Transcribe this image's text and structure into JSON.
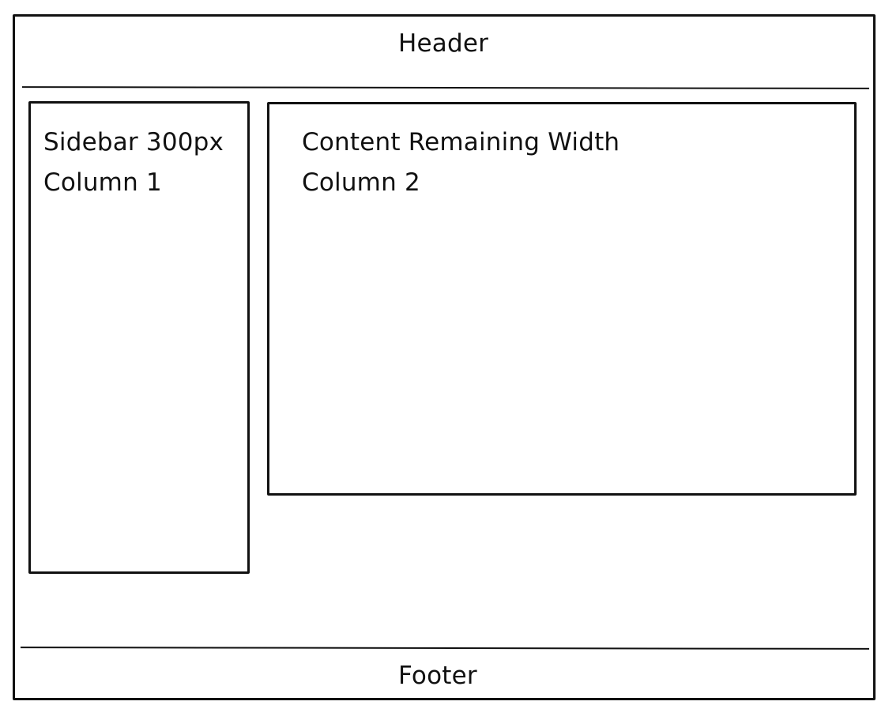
{
  "layout_mockup": {
    "header": {
      "label": "Header"
    },
    "sidebar": {
      "title": "Sidebar 300px",
      "column": "Column 1"
    },
    "content": {
      "title": "Content Remaining Width",
      "column": "Column 2"
    },
    "footer": {
      "label": "Footer"
    }
  }
}
